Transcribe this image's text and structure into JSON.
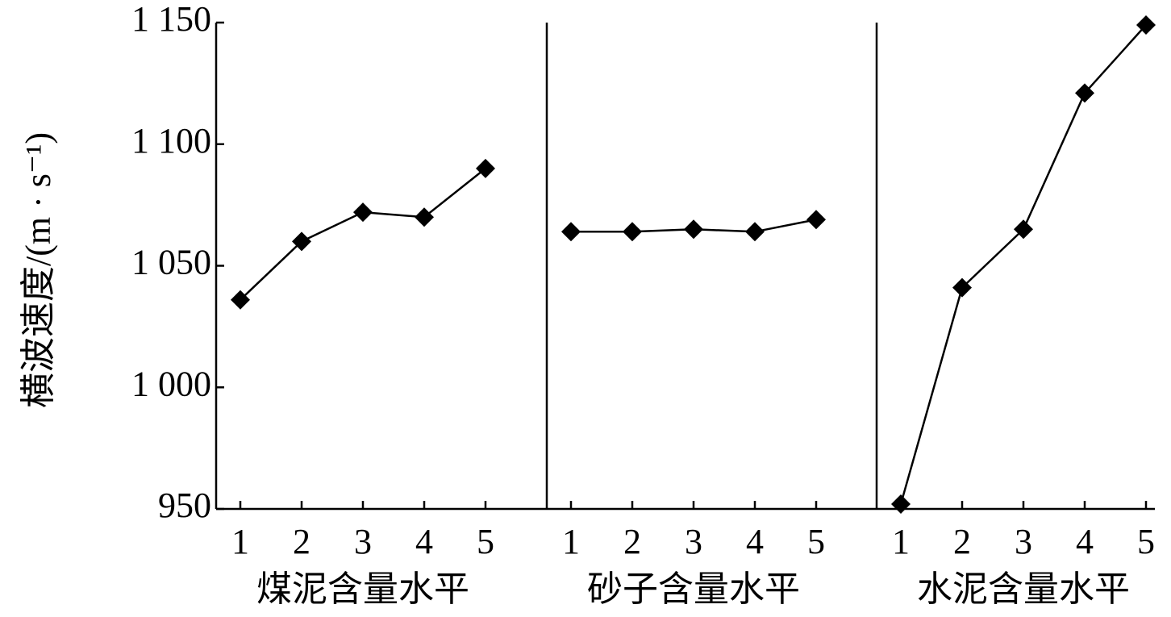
{
  "chart_data": [
    {
      "type": "line",
      "xlabel": "煤泥含量水平",
      "ylabel": "横波速度/(m · s⁻¹)",
      "categories": [
        "1",
        "2",
        "3",
        "4",
        "5"
      ],
      "values": [
        1036,
        1060,
        1072,
        1070,
        1090
      ],
      "color": "#000000",
      "ylim": [
        950,
        1150
      ],
      "yticks": [
        {
          "value": 950,
          "label": "950"
        },
        {
          "value": 1000,
          "label": "1 000"
        },
        {
          "value": 1050,
          "label": "1 050"
        },
        {
          "value": 1100,
          "label": "1 100"
        },
        {
          "value": 1150,
          "label": "1 150"
        }
      ]
    },
    {
      "type": "line",
      "xlabel": "砂子含量水平",
      "categories": [
        "1",
        "2",
        "3",
        "4",
        "5"
      ],
      "values": [
        1064,
        1064,
        1065,
        1064,
        1069
      ],
      "color": "#000000"
    },
    {
      "type": "line",
      "xlabel": "水泥含量水平",
      "categories": [
        "1",
        "2",
        "3",
        "4",
        "5"
      ],
      "values": [
        952,
        1041,
        1065,
        1121,
        1149
      ],
      "color": "#000000"
    }
  ]
}
